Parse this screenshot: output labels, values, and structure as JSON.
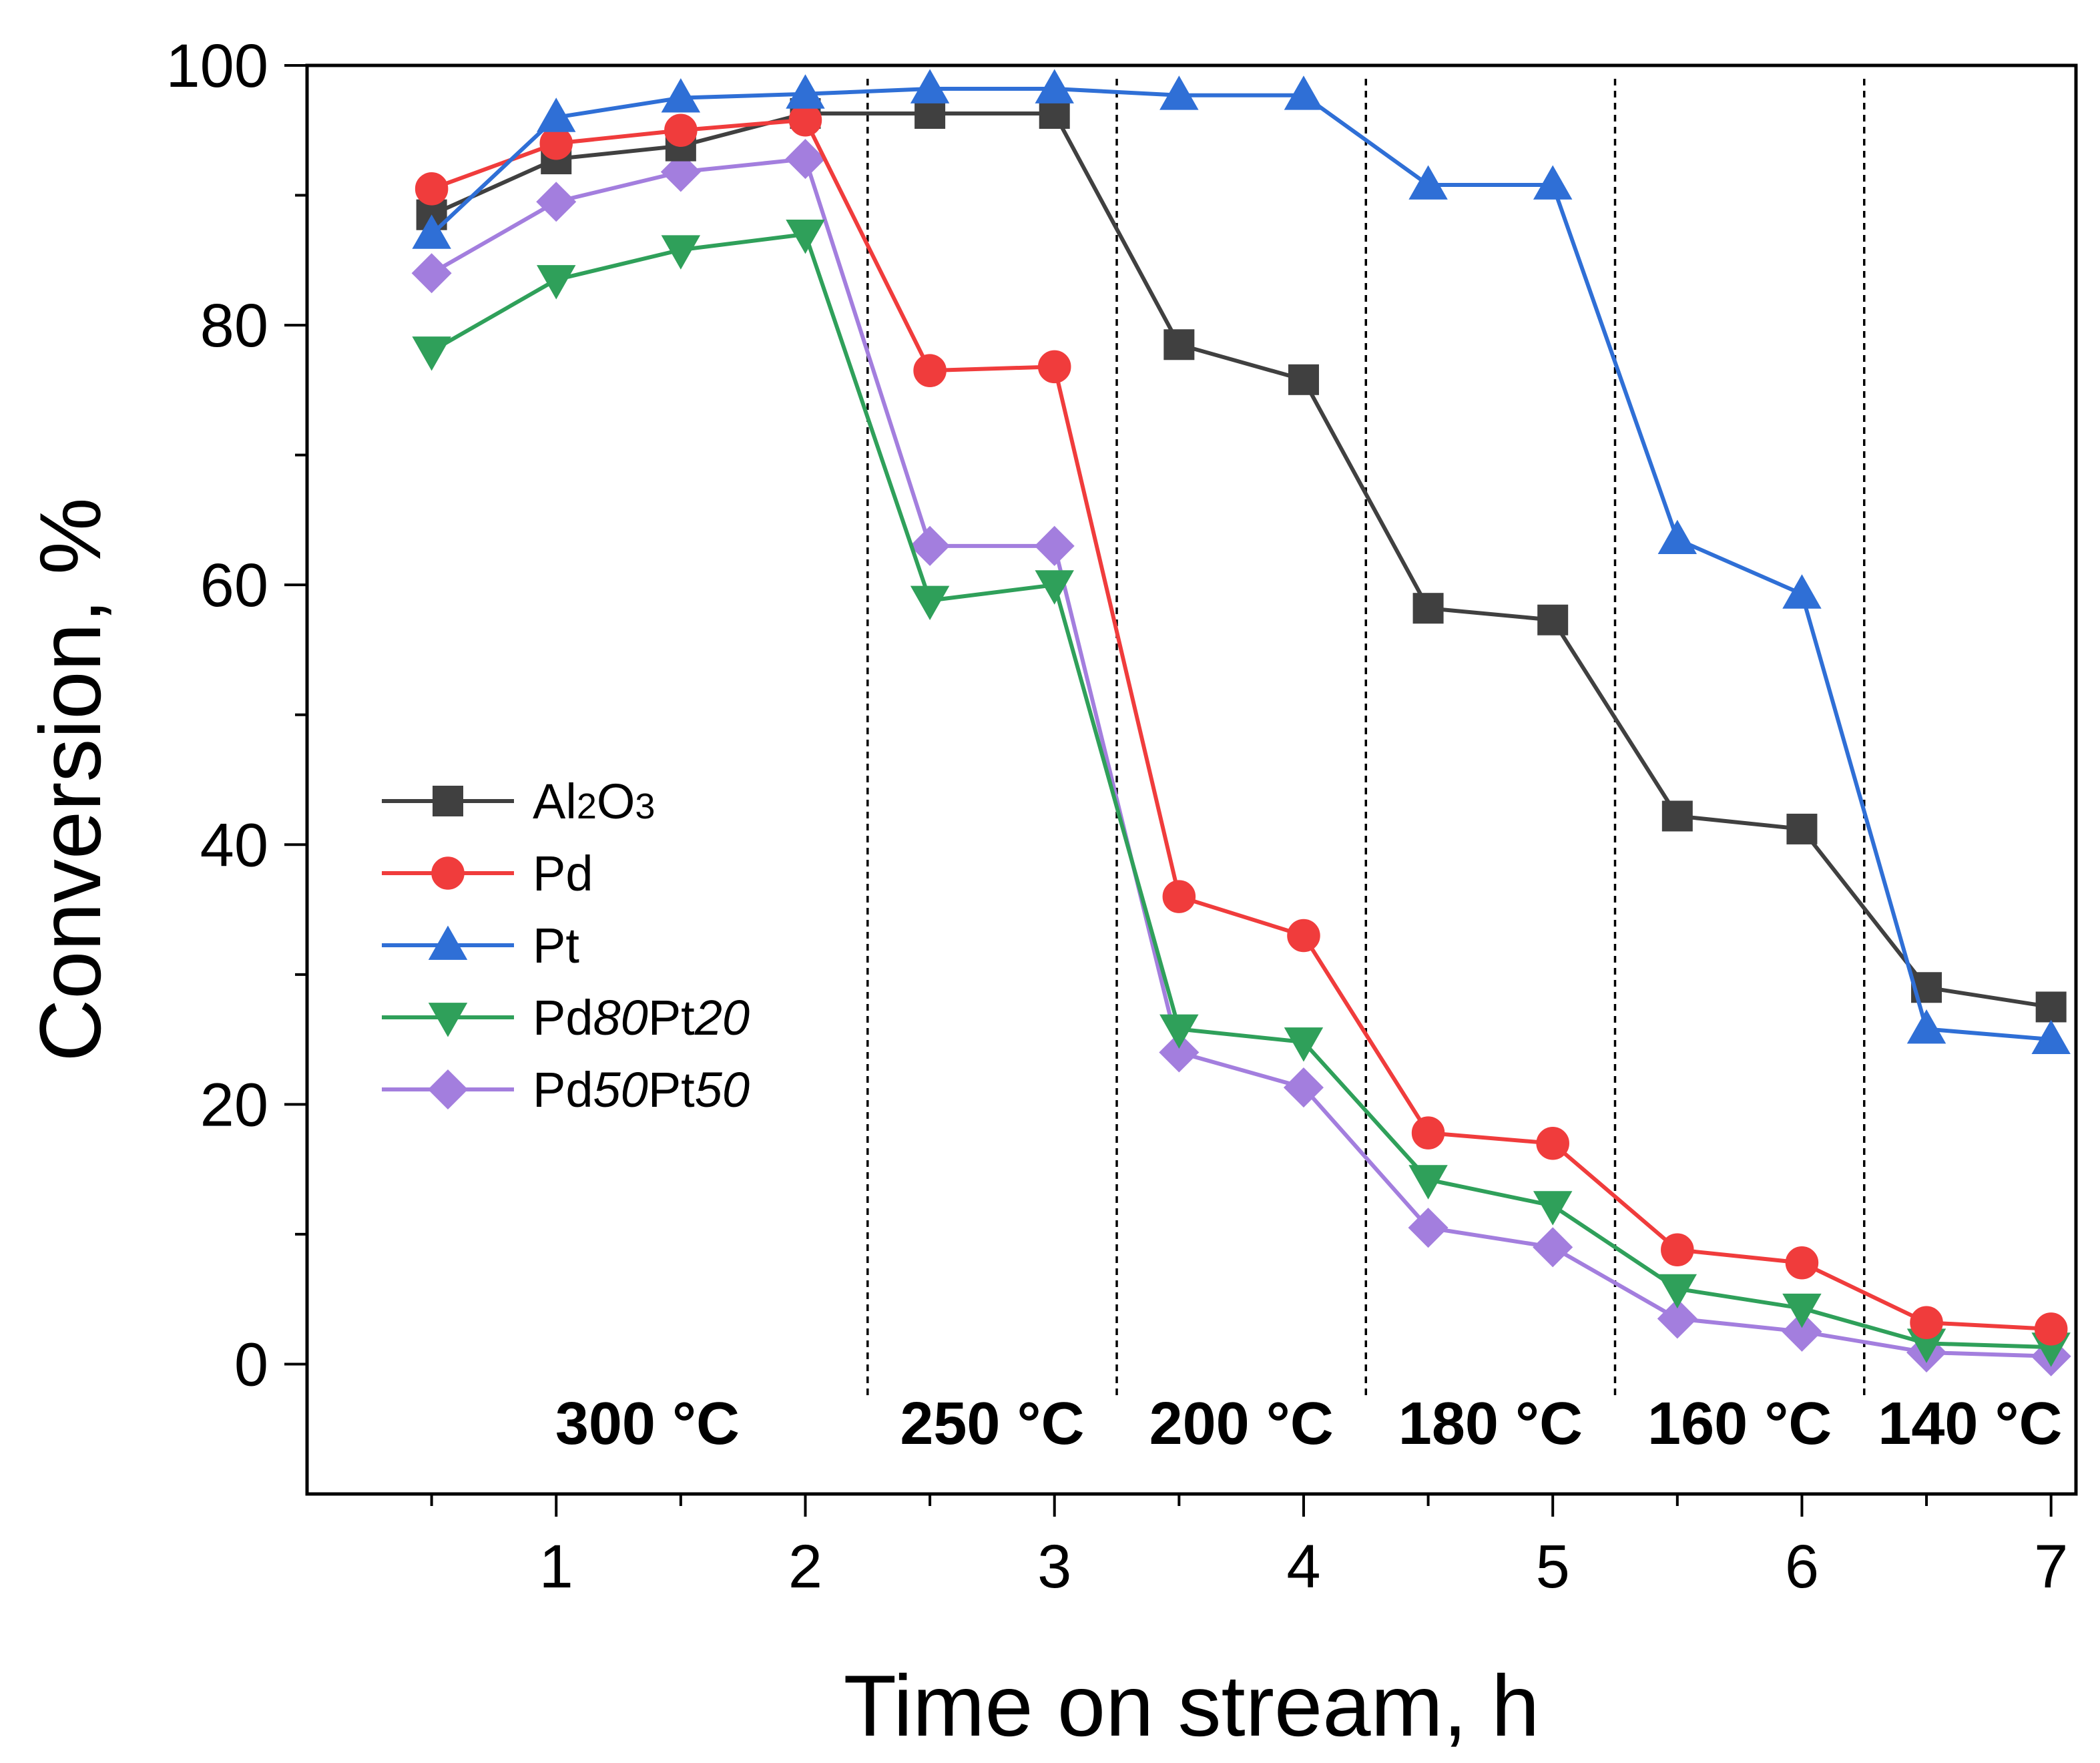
{
  "chart_data": {
    "type": "line",
    "xlabel": "Time on stream, h",
    "ylabel": "Conversion, %",
    "xlim": [
      0,
      7.1
    ],
    "ylim": [
      -10,
      100
    ],
    "x_ticks": [
      "1",
      "2",
      "3",
      "4",
      "5",
      "6",
      "7"
    ],
    "y_ticks": [
      "0",
      "20",
      "40",
      "60",
      "80",
      "100"
    ],
    "grid": false,
    "legend_position": "left-middle",
    "x": [
      0.5,
      1,
      1.5,
      2,
      2.5,
      3,
      3.5,
      4,
      4.5,
      5,
      5.5,
      6,
      6.5,
      7
    ],
    "series": [
      {
        "name": "Al2O3",
        "label_parts": [
          {
            "t": "Al"
          },
          {
            "t": "2",
            "sub": true
          },
          {
            "t": "O"
          },
          {
            "t": "3",
            "sub": true
          }
        ],
        "color": "#404040",
        "marker": "square",
        "values": [
          88.5,
          92.8,
          93.8,
          96.3,
          96.3,
          96.3,
          78.5,
          75.8,
          58.2,
          57.3,
          42.2,
          41.2,
          29.0,
          27.5
        ]
      },
      {
        "name": "Pd",
        "label_parts": [
          {
            "t": "Pd"
          }
        ],
        "color": "#f03c3c",
        "marker": "circle",
        "values": [
          90.5,
          94.0,
          95.0,
          95.8,
          76.5,
          76.8,
          36.0,
          33.0,
          17.8,
          17.0,
          8.8,
          7.8,
          3.2,
          2.7
        ]
      },
      {
        "name": "Pt",
        "label_parts": [
          {
            "t": "Pt"
          }
        ],
        "color": "#2f6fd6",
        "marker": "triangle-up",
        "values": [
          87.0,
          96.0,
          97.5,
          97.8,
          98.2,
          98.2,
          97.7,
          97.7,
          90.8,
          90.8,
          63.5,
          59.3,
          25.8,
          25.0
        ]
      },
      {
        "name": "Pd80Pt20",
        "label_parts": [
          {
            "t": "Pd"
          },
          {
            "t": "80",
            "it": true
          },
          {
            "t": "Pt"
          },
          {
            "t": "20",
            "it": true
          }
        ],
        "color": "#2fa05a",
        "marker": "triangle-down",
        "values": [
          78.0,
          83.5,
          85.8,
          87.0,
          58.8,
          60.0,
          25.8,
          24.8,
          14.2,
          12.2,
          5.8,
          4.3,
          1.6,
          1.3
        ]
      },
      {
        "name": "Pd50Pt50",
        "label_parts": [
          {
            "t": "Pd"
          },
          {
            "t": "50",
            "it": true
          },
          {
            "t": "Pt"
          },
          {
            "t": "50",
            "it": true
          }
        ],
        "color": "#a37ede",
        "marker": "diamond",
        "values": [
          84.0,
          89.5,
          91.8,
          92.8,
          63.0,
          63.0,
          24.0,
          21.3,
          10.5,
          9.0,
          3.5,
          2.5,
          0.9,
          0.6
        ]
      }
    ],
    "zones": [
      {
        "label": "300 °C",
        "from": 0,
        "to": 2.25
      },
      {
        "label": "250 °C",
        "from": 2.25,
        "to": 3.25
      },
      {
        "label": "200 °C",
        "from": 3.25,
        "to": 4.25
      },
      {
        "label": "180 °C",
        "from": 4.25,
        "to": 5.25
      },
      {
        "label": "160 °C",
        "from": 5.25,
        "to": 6.25
      },
      {
        "label": "140 °C",
        "from": 6.25,
        "to": 7.1
      }
    ]
  }
}
